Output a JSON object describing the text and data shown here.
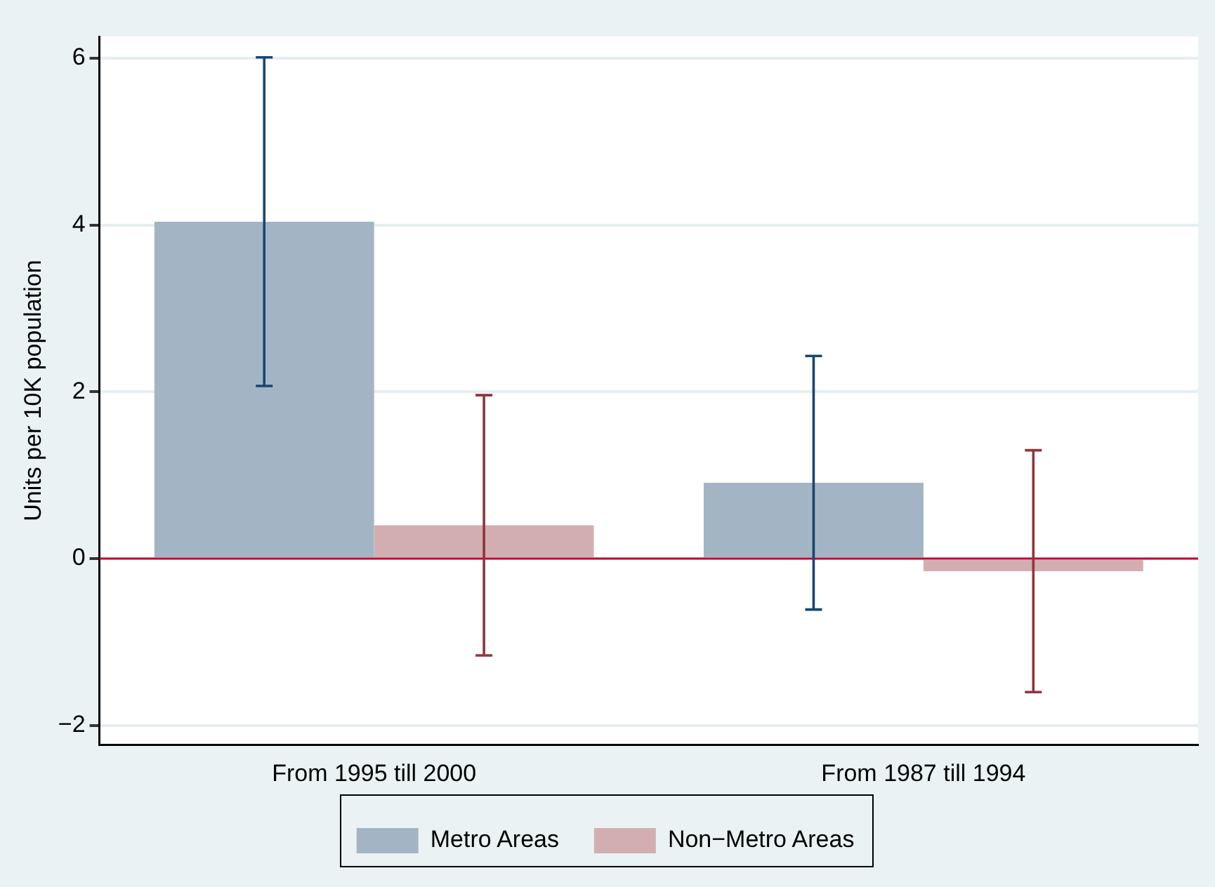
{
  "chart_data": {
    "type": "bar",
    "categories": [
      "From 1995 till 2000",
      "From 1987 till 1994"
    ],
    "ylabel": "Units per 10K population",
    "series": [
      {
        "name": "Metro Areas",
        "color": "#a3b5c5",
        "values": [
          4.04,
          0.91
        ],
        "errors": [
          1.97,
          1.52
        ]
      },
      {
        "name": "Non−Metro Areas",
        "color": "#d3aeb1",
        "values": [
          0.4,
          -0.15
        ],
        "errors": [
          1.56,
          1.45
        ]
      }
    ],
    "ylim": [
      -2.23,
      6.26
    ],
    "yticks": [
      {
        "value": -2,
        "label": "−2"
      },
      0,
      2,
      4,
      6
    ],
    "ref_lines": [
      {
        "axis": "y",
        "value": 0,
        "color": "#c10534"
      }
    ],
    "grid": "y",
    "legend": "bottom"
  }
}
